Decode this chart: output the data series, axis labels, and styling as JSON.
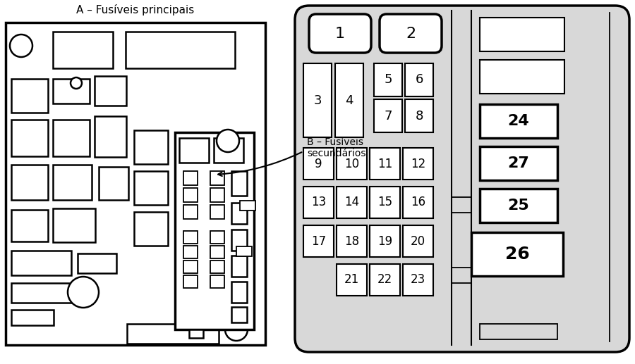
{
  "label_A": "A – Fusíveis principais",
  "label_B": "B – Fusíveis\nsecundários",
  "bg_color": "#ffffff",
  "panel_B_bg": "#d8d8d8",
  "fuse_bg": "#ffffff",
  "fuse_ec": "#000000"
}
